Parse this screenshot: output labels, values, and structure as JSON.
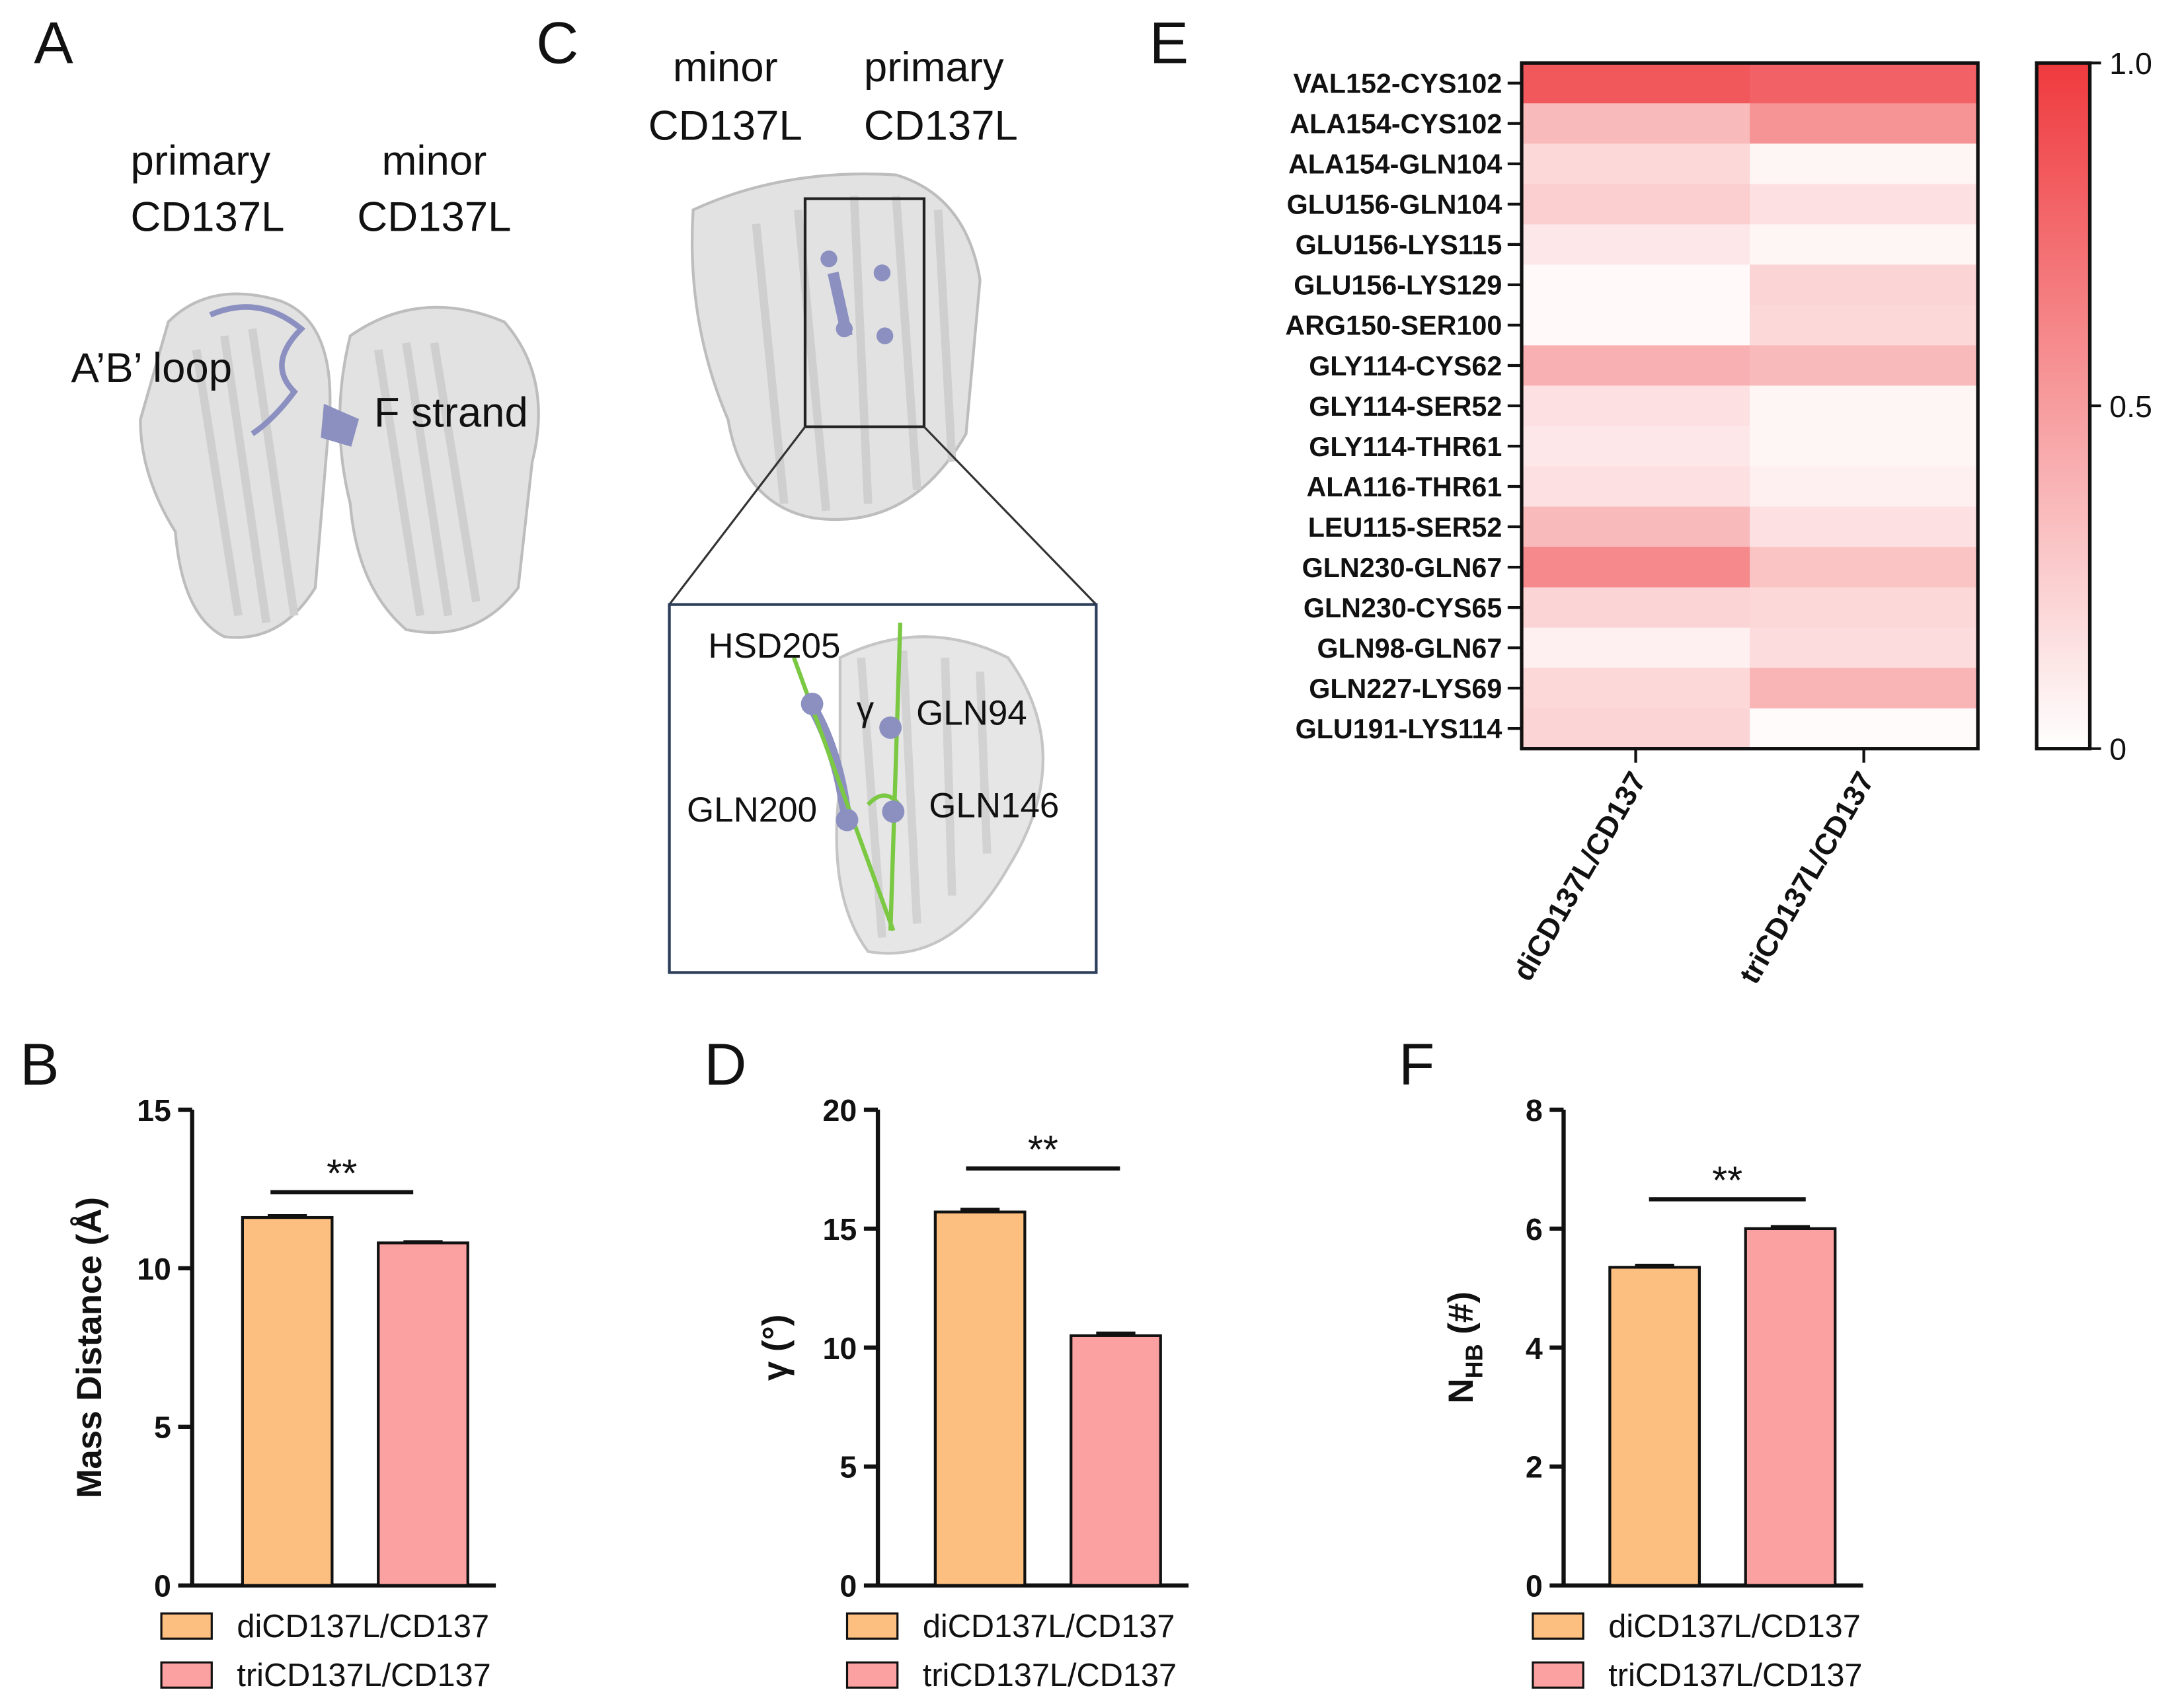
{
  "structures": [
    {
      "panel": "A",
      "labels": [
        "primary",
        "CD137L",
        "minor",
        "CD137L",
        "A’B’ loop",
        "F strand"
      ]
    },
    {
      "panel": "C",
      "labels": [
        "minor",
        "CD137L",
        "primary",
        "CD137L",
        "HSD205",
        "γ",
        "GLN94",
        "GLN200",
        "GLN146"
      ]
    }
  ],
  "chart_data": [
    {
      "panel": "E",
      "type": "heatmap",
      "rows": [
        "VAL152-CYS102",
        "ALA154-CYS102",
        "ALA154-GLN104",
        "GLU156-GLN104",
        "GLU156-LYS115",
        "GLU156-LYS129",
        "ARG150-SER100",
        "GLY114-CYS62",
        "GLY114-SER52",
        "GLY114-THR61",
        "ALA116-THR61",
        "LEU115-SER52",
        "GLN230-GLN67",
        "GLN230-CYS65",
        "GLN98-GLN67",
        "GLN227-LYS69",
        "GLU191-LYS114"
      ],
      "x": [
        "diCD137L/CD137",
        "triCD137L/CD137"
      ],
      "values": [
        [
          0.85,
          0.8
        ],
        [
          0.35,
          0.55
        ],
        [
          0.2,
          0.05
        ],
        [
          0.25,
          0.15
        ],
        [
          0.12,
          0.05
        ],
        [
          0.03,
          0.22
        ],
        [
          0.03,
          0.2
        ],
        [
          0.4,
          0.35
        ],
        [
          0.15,
          0.05
        ],
        [
          0.12,
          0.05
        ],
        [
          0.15,
          0.08
        ],
        [
          0.35,
          0.15
        ],
        [
          0.6,
          0.3
        ],
        [
          0.22,
          0.2
        ],
        [
          0.08,
          0.18
        ],
        [
          0.2,
          0.38
        ],
        [
          0.22,
          0.02
        ]
      ],
      "zlim": [
        0,
        1
      ],
      "zticks": [
        0,
        0.5,
        {
          "value": 1,
          "label": "1.0"
        }
      ],
      "colors": [
        "#ffffff",
        "#ef3a3e"
      ]
    },
    {
      "panel": "B",
      "type": "bar",
      "categories": [
        "diCD137L/CD137",
        "triCD137L/CD137"
      ],
      "values": [
        11.6,
        10.8
      ],
      "errors": [
        0.05,
        0.03
      ],
      "colors": [
        "#fdbf80",
        "#fca1a1"
      ],
      "ylabel": "Mass Distance (Å)",
      "ylim": [
        0,
        15
      ],
      "yticks": [
        0,
        5,
        10,
        15
      ],
      "annotation": "**"
    },
    {
      "panel": "D",
      "type": "bar",
      "categories": [
        "diCD137L/CD137",
        "triCD137L/CD137"
      ],
      "values": [
        15.7,
        10.5
      ],
      "errors": [
        0.1,
        0.1
      ],
      "colors": [
        "#fdbf80",
        "#fca1a1"
      ],
      "ylabel": "γ (°)",
      "ylim": [
        0,
        20
      ],
      "yticks": [
        0,
        5,
        10,
        15,
        20
      ],
      "annotation": "**"
    },
    {
      "panel": "F",
      "type": "bar",
      "categories": [
        "diCD137L/CD137",
        "triCD137L/CD137"
      ],
      "values": [
        5.35,
        6.0
      ],
      "errors": [
        0.03,
        0.03
      ],
      "colors": [
        "#fdbf80",
        "#fca1a1"
      ],
      "ylabel": [
        "N",
        "HB",
        " (#)"
      ],
      "ylim": [
        0,
        8
      ],
      "yticks": [
        0,
        2,
        4,
        6,
        8
      ],
      "annotation": "**"
    }
  ]
}
